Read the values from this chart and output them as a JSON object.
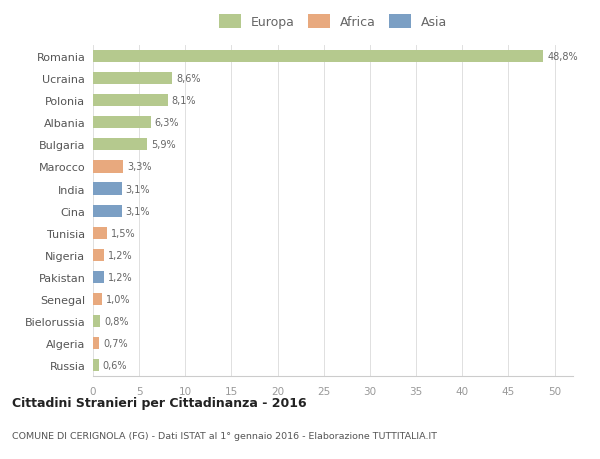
{
  "countries": [
    "Romania",
    "Ucraina",
    "Polonia",
    "Albania",
    "Bulgaria",
    "Marocco",
    "India",
    "Cina",
    "Tunisia",
    "Nigeria",
    "Pakistan",
    "Senegal",
    "Bielorussia",
    "Algeria",
    "Russia"
  ],
  "values": [
    48.8,
    8.6,
    8.1,
    6.3,
    5.9,
    3.3,
    3.1,
    3.1,
    1.5,
    1.2,
    1.2,
    1.0,
    0.8,
    0.7,
    0.6
  ],
  "labels": [
    "48,8%",
    "8,6%",
    "8,1%",
    "6,3%",
    "5,9%",
    "3,3%",
    "3,1%",
    "3,1%",
    "1,5%",
    "1,2%",
    "1,2%",
    "1,0%",
    "0,8%",
    "0,7%",
    "0,6%"
  ],
  "continents": [
    "Europa",
    "Europa",
    "Europa",
    "Europa",
    "Europa",
    "Africa",
    "Asia",
    "Asia",
    "Africa",
    "Africa",
    "Asia",
    "Africa",
    "Europa",
    "Africa",
    "Europa"
  ],
  "colors": {
    "Europa": "#b5c98e",
    "Africa": "#e8a97e",
    "Asia": "#7b9fc4"
  },
  "xlim": [
    0,
    52
  ],
  "xticks": [
    0,
    5,
    10,
    15,
    20,
    25,
    30,
    35,
    40,
    45,
    50
  ],
  "title": "Cittadini Stranieri per Cittadinanza - 2016",
  "subtitle": "COMUNE DI CERIGNOLA (FG) - Dati ISTAT al 1° gennaio 2016 - Elaborazione TUTTITALIA.IT",
  "background_color": "#ffffff",
  "grid_color": "#e0e0e0",
  "bar_height": 0.55
}
